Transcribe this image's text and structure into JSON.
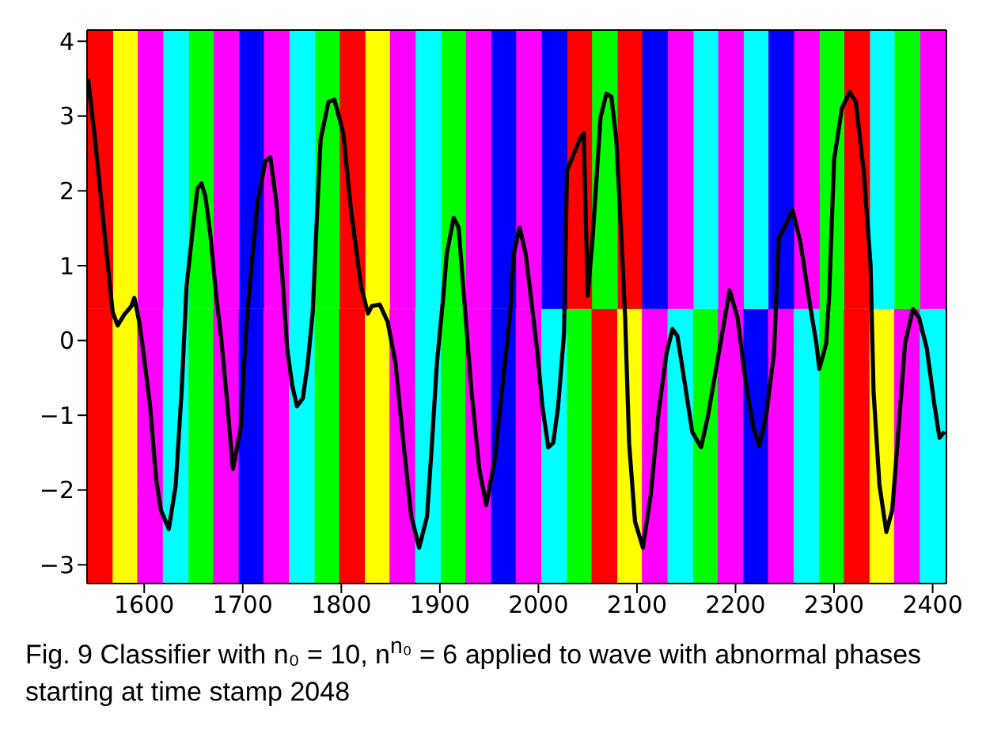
{
  "chart_data": {
    "type": "bar",
    "annotations": [
      "Fig. 9 Classifier with n₀ = 10, n$^{n₀}$ = 6 applied to wave with abnormal phases starting at time stamp 2048"
    ],
    "xlim": [
      1542,
      2414
    ],
    "ylim": [
      -3.25,
      4.15
    ],
    "xticks": [
      1600,
      1700,
      1800,
      1900,
      2000,
      2100,
      2200,
      2300,
      2400
    ],
    "yticks": [
      -3,
      -2,
      -1,
      0,
      1,
      2,
      3,
      4
    ],
    "legend": false,
    "series": [
      {
        "x": [
          1555,
          1581,
          1606,
          1632,
          1658,
          1683,
          1709,
          1734,
          1760,
          1786,
          1811,
          1837,
          1862,
          1888,
          1914,
          1939,
          1965,
          1990,
          2016,
          2042,
          2067,
          2093,
          2118,
          2144,
          2170,
          2195,
          2221,
          2246,
          2272,
          2298,
          2323,
          2349,
          2374,
          2400
        ],
        "base": [
          -3.25,
          -3.25,
          -3.25,
          -3.25,
          -3.25,
          -3.25,
          -3.25,
          -3.25,
          -3.25,
          -3.25,
          -3.25,
          -3.25,
          -3.25,
          -3.25,
          -3.25,
          -3.25,
          -3.25,
          -3.25,
          -3.25,
          -3.25,
          -3.25,
          -3.25,
          -3.25,
          -3.25,
          -3.25,
          -3.25,
          -3.25,
          -3.25,
          -3.25,
          -3.25,
          -3.25,
          -3.25,
          -3.25,
          -3.25
        ],
        "values": [
          3.67,
          3.67,
          3.67,
          3.67,
          3.67,
          3.67,
          3.67,
          3.67,
          3.67,
          3.67,
          3.67,
          3.67,
          3.67,
          3.67,
          3.67,
          3.67,
          3.67,
          3.67,
          3.67,
          3.67,
          3.67,
          3.67,
          3.67,
          3.67,
          3.67,
          3.67,
          3.67,
          3.67,
          3.67,
          3.67,
          3.67,
          3.67,
          3.67,
          3.67
        ],
        "colors": [
          "#ff0000",
          "#ffff00",
          "#ff00ff",
          "#00ffff",
          "#00ff00",
          "#ff00ff",
          "#0000ff",
          "#ff00ff",
          "#00ffff",
          "#00ff00",
          "#ff0000",
          "#ffff00",
          "#ff00ff",
          "#00ffff",
          "#00ff00",
          "#ff00ff",
          "#0000ff",
          "#ff00ff",
          "#00ffff",
          "#00ff00",
          "#ff0000",
          "#ffff00",
          "#ff00ff",
          "#00ffff",
          "#00ff00",
          "#ff00ff",
          "#0000ff",
          "#ff00ff",
          "#00ffff",
          "#00ff00",
          "#ff0000",
          "#ffff00",
          "#ff00ff",
          "#00ffff"
        ]
      },
      {
        "x": [
          1555,
          1581,
          1606,
          1632,
          1658,
          1683,
          1709,
          1734,
          1760,
          1786,
          1811,
          1837,
          1862,
          1888,
          1914,
          1939,
          1965,
          1990,
          2016,
          2042,
          2067,
          2093,
          2118,
          2144,
          2170,
          2195,
          2221,
          2246,
          2272,
          2298,
          2323,
          2349,
          2374,
          2400
        ],
        "base": [
          0.42,
          0.42,
          0.42,
          0.42,
          0.42,
          0.42,
          0.42,
          0.42,
          0.42,
          0.42,
          0.42,
          0.42,
          0.42,
          0.42,
          0.42,
          0.42,
          0.42,
          0.42,
          0.42,
          0.42,
          0.42,
          0.42,
          0.42,
          0.42,
          0.42,
          0.42,
          0.42,
          0.42,
          0.42,
          0.42,
          0.42,
          0.42,
          0.42,
          0.42
        ],
        "values": [
          3.73,
          3.73,
          3.73,
          3.73,
          3.73,
          3.73,
          3.73,
          3.73,
          3.73,
          3.73,
          3.73,
          3.73,
          3.73,
          3.73,
          3.73,
          3.73,
          3.73,
          3.73,
          3.73,
          3.73,
          3.73,
          3.73,
          3.73,
          3.73,
          3.73,
          3.73,
          3.73,
          3.73,
          3.73,
          3.73,
          3.73,
          3.73,
          3.73,
          3.73
        ],
        "colors": [
          "#ff0000",
          "#ffff00",
          "#ff00ff",
          "#00ffff",
          "#00ff00",
          "#ff00ff",
          "#0000ff",
          "#ff00ff",
          "#00ffff",
          "#00ff00",
          "#ff0000",
          "#ffff00",
          "#ff00ff",
          "#00ffff",
          "#00ff00",
          "#ff00ff",
          "#0000ff",
          "#ff00ff",
          "#0000ff",
          "#ff0000",
          "#00ff00",
          "#ff0000",
          "#0000ff",
          "#ff00ff",
          "#00ffff",
          "#ff00ff",
          "#00ffff",
          "#0000ff",
          "#ff00ff",
          "#00ff00",
          "#ff0000",
          "#00ffff",
          "#00ff00",
          "#ff00ff"
        ]
      },
      {
        "type": "line",
        "color": "#000000",
        "x": [
          1543,
          1550,
          1560,
          1568,
          1573,
          1580,
          1587,
          1590,
          1595,
          1598,
          1606,
          1612,
          1617,
          1625,
          1632,
          1638,
          1643,
          1650,
          1654,
          1658,
          1662,
          1667,
          1673,
          1678,
          1684,
          1690,
          1698,
          1703,
          1707,
          1715,
          1723,
          1728,
          1734,
          1740,
          1745,
          1750,
          1755,
          1761,
          1766,
          1771,
          1775,
          1779,
          1787,
          1793,
          1802,
          1810,
          1820,
          1827,
          1831,
          1839,
          1847,
          1855,
          1863,
          1871,
          1879,
          1887,
          1892,
          1897,
          1903,
          1907,
          1914,
          1919,
          1924,
          1932,
          1940,
          1947,
          1956,
          1963,
          1971,
          1975,
          1981,
          1987,
          1991,
          1999,
          2004,
          2010,
          2015,
          2020,
          2026,
          2029,
          2042,
          2046,
          2050,
          2055,
          2063,
          2069,
          2074,
          2079,
          2084,
          2088,
          2092,
          2098,
          2106,
          2114,
          2122,
          2130,
          2136,
          2141,
          2148,
          2156,
          2165,
          2172,
          2183,
          2194,
          2202,
          2210,
          2218,
          2224,
          2231,
          2239,
          2244,
          2252,
          2258,
          2266,
          2274,
          2282,
          2285,
          2292,
          2295,
          2300,
          2308,
          2316,
          2322,
          2330,
          2337,
          2340,
          2346,
          2353,
          2359,
          2364,
          2372,
          2380,
          2386,
          2394,
          2402,
          2407,
          2412
        ],
        "values": [
          3.5,
          2.7,
          1.4,
          0.38,
          0.2,
          0.35,
          0.46,
          0.57,
          0.25,
          -0.04,
          -0.88,
          -1.85,
          -2.27,
          -2.52,
          -1.93,
          -0.67,
          0.73,
          1.58,
          2.03,
          2.1,
          1.93,
          1.43,
          0.6,
          0.04,
          -0.8,
          -1.72,
          -1.16,
          0.04,
          0.73,
          1.85,
          2.4,
          2.45,
          1.85,
          0.88,
          -0.1,
          -0.59,
          -0.88,
          -0.77,
          -0.3,
          0.38,
          1.58,
          2.69,
          3.19,
          3.22,
          2.77,
          1.72,
          0.73,
          0.36,
          0.46,
          0.48,
          0.25,
          -0.3,
          -1.37,
          -2.35,
          -2.77,
          -2.35,
          -1.37,
          -0.3,
          0.52,
          1.16,
          1.64,
          1.51,
          0.67,
          -0.67,
          -1.72,
          -2.2,
          -1.57,
          -0.67,
          0.31,
          1.16,
          1.51,
          1.16,
          0.73,
          -0.17,
          -0.88,
          -1.43,
          -1.37,
          -0.88,
          0.1,
          2.27,
          2.69,
          2.77,
          0.6,
          1.37,
          2.98,
          3.3,
          3.26,
          2.69,
          1.43,
          0.31,
          -1.37,
          -2.42,
          -2.77,
          -2.06,
          -0.95,
          -0.17,
          0.15,
          0.06,
          -0.53,
          -1.22,
          -1.43,
          -1.01,
          -0.17,
          0.67,
          0.31,
          -0.53,
          -1.16,
          -1.41,
          -1.01,
          -0.17,
          1.37,
          1.58,
          1.74,
          1.3,
          0.6,
          -0.04,
          -0.38,
          -0.04,
          0.6,
          2.42,
          3.11,
          3.32,
          3.19,
          2.27,
          1.01,
          -0.67,
          -1.93,
          -2.56,
          -2.27,
          -1.43,
          -0.04,
          0.42,
          0.31,
          -0.1,
          -0.88,
          -1.3,
          -1.22
        ]
      }
    ]
  }
}
